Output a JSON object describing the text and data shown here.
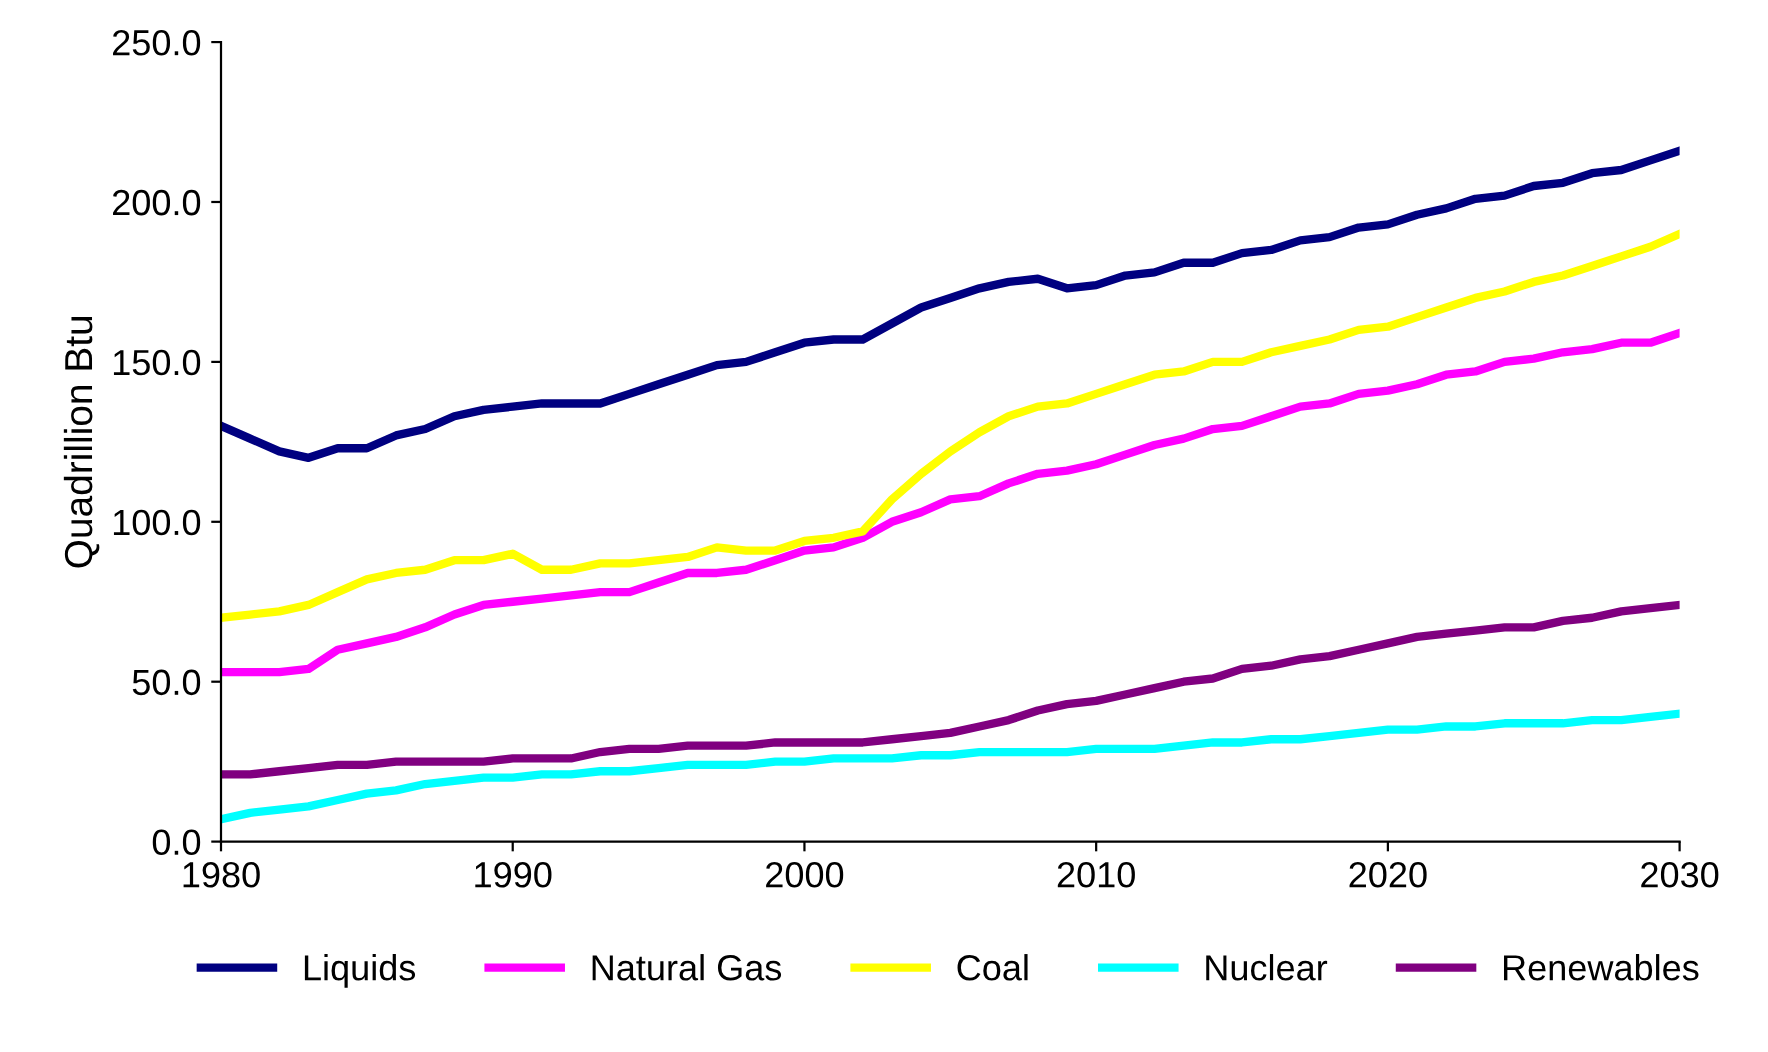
{
  "chart_data": {
    "type": "line",
    "ylabel": "Quadrillion Btu",
    "x": [
      1980,
      1981,
      1982,
      1983,
      1984,
      1985,
      1986,
      1987,
      1988,
      1989,
      1990,
      1991,
      1992,
      1993,
      1994,
      1995,
      1996,
      1997,
      1998,
      1999,
      2000,
      2001,
      2002,
      2003,
      2004,
      2005,
      2006,
      2007,
      2008,
      2009,
      2010,
      2011,
      2012,
      2013,
      2014,
      2015,
      2016,
      2017,
      2018,
      2019,
      2020,
      2021,
      2022,
      2023,
      2024,
      2025,
      2026,
      2027,
      2028,
      2029,
      2030
    ],
    "series": [
      {
        "name": "Liquids",
        "color": "#000080",
        "values": [
          130,
          126,
          122,
          120,
          123,
          123,
          127,
          129,
          133,
          135,
          136,
          137,
          137,
          137,
          140,
          143,
          146,
          149,
          150,
          153,
          156,
          157,
          157,
          162,
          167,
          170,
          173,
          175,
          176,
          173,
          174,
          177,
          178,
          181,
          181,
          184,
          185,
          188,
          189,
          192,
          193,
          196,
          198,
          201,
          202,
          205,
          206,
          209,
          210,
          213,
          216
        ]
      },
      {
        "name": "Natural Gas",
        "color": "#ff00ff",
        "values": [
          53,
          53,
          53,
          54,
          60,
          62,
          64,
          67,
          71,
          74,
          75,
          76,
          77,
          78,
          78,
          81,
          84,
          84,
          85,
          88,
          91,
          92,
          95,
          100,
          103,
          107,
          108,
          112,
          115,
          116,
          118,
          121,
          124,
          126,
          129,
          130,
          133,
          136,
          137,
          140,
          141,
          143,
          146,
          147,
          150,
          151,
          153,
          154,
          156,
          156,
          159
        ]
      },
      {
        "name": "Coal",
        "color": "#ffff00",
        "values": [
          70,
          71,
          72,
          74,
          78,
          82,
          84,
          85,
          88,
          88,
          90,
          85,
          85,
          87,
          87,
          88,
          89,
          92,
          91,
          91,
          94,
          95,
          97,
          107,
          115,
          122,
          128,
          133,
          136,
          137,
          140,
          143,
          146,
          147,
          150,
          150,
          153,
          155,
          157,
          160,
          161,
          164,
          167,
          170,
          172,
          175,
          177,
          180,
          183,
          186,
          190
        ]
      },
      {
        "name": "Nuclear",
        "color": "#00ffff",
        "values": [
          7,
          9,
          10,
          11,
          13,
          15,
          16,
          18,
          19,
          20,
          20,
          21,
          21,
          22,
          22,
          23,
          24,
          24,
          24,
          25,
          25,
          26,
          26,
          26,
          27,
          27,
          28,
          28,
          28,
          28,
          29,
          29,
          29,
          30,
          31,
          31,
          32,
          32,
          33,
          34,
          35,
          35,
          36,
          36,
          37,
          37,
          37,
          38,
          38,
          39,
          40
        ]
      },
      {
        "name": "Renewables",
        "color": "#800080",
        "values": [
          21,
          21,
          22,
          23,
          24,
          24,
          25,
          25,
          25,
          25,
          26,
          26,
          26,
          28,
          29,
          29,
          30,
          30,
          30,
          31,
          31,
          31,
          31,
          32,
          33,
          34,
          36,
          38,
          41,
          43,
          44,
          46,
          48,
          50,
          51,
          54,
          55,
          57,
          58,
          60,
          62,
          64,
          65,
          66,
          67,
          67,
          69,
          70,
          72,
          73,
          74
        ]
      }
    ],
    "xlim": [
      1980,
      2030
    ],
    "xticks": [
      1980,
      1990,
      2000,
      2010,
      2020,
      2030
    ],
    "ylim": [
      0,
      250
    ],
    "yticks": [
      {
        "value": 0,
        "label": "0.0"
      },
      {
        "value": 50,
        "label": "50.0"
      },
      {
        "value": 100,
        "label": "100.0"
      },
      {
        "value": 150,
        "label": "150.0"
      },
      {
        "value": 200,
        "label": "200.0"
      },
      {
        "value": 250,
        "label": "250.0"
      }
    ],
    "grid": false,
    "legend": "bottom",
    "marker": "none",
    "line_style": "solid"
  }
}
